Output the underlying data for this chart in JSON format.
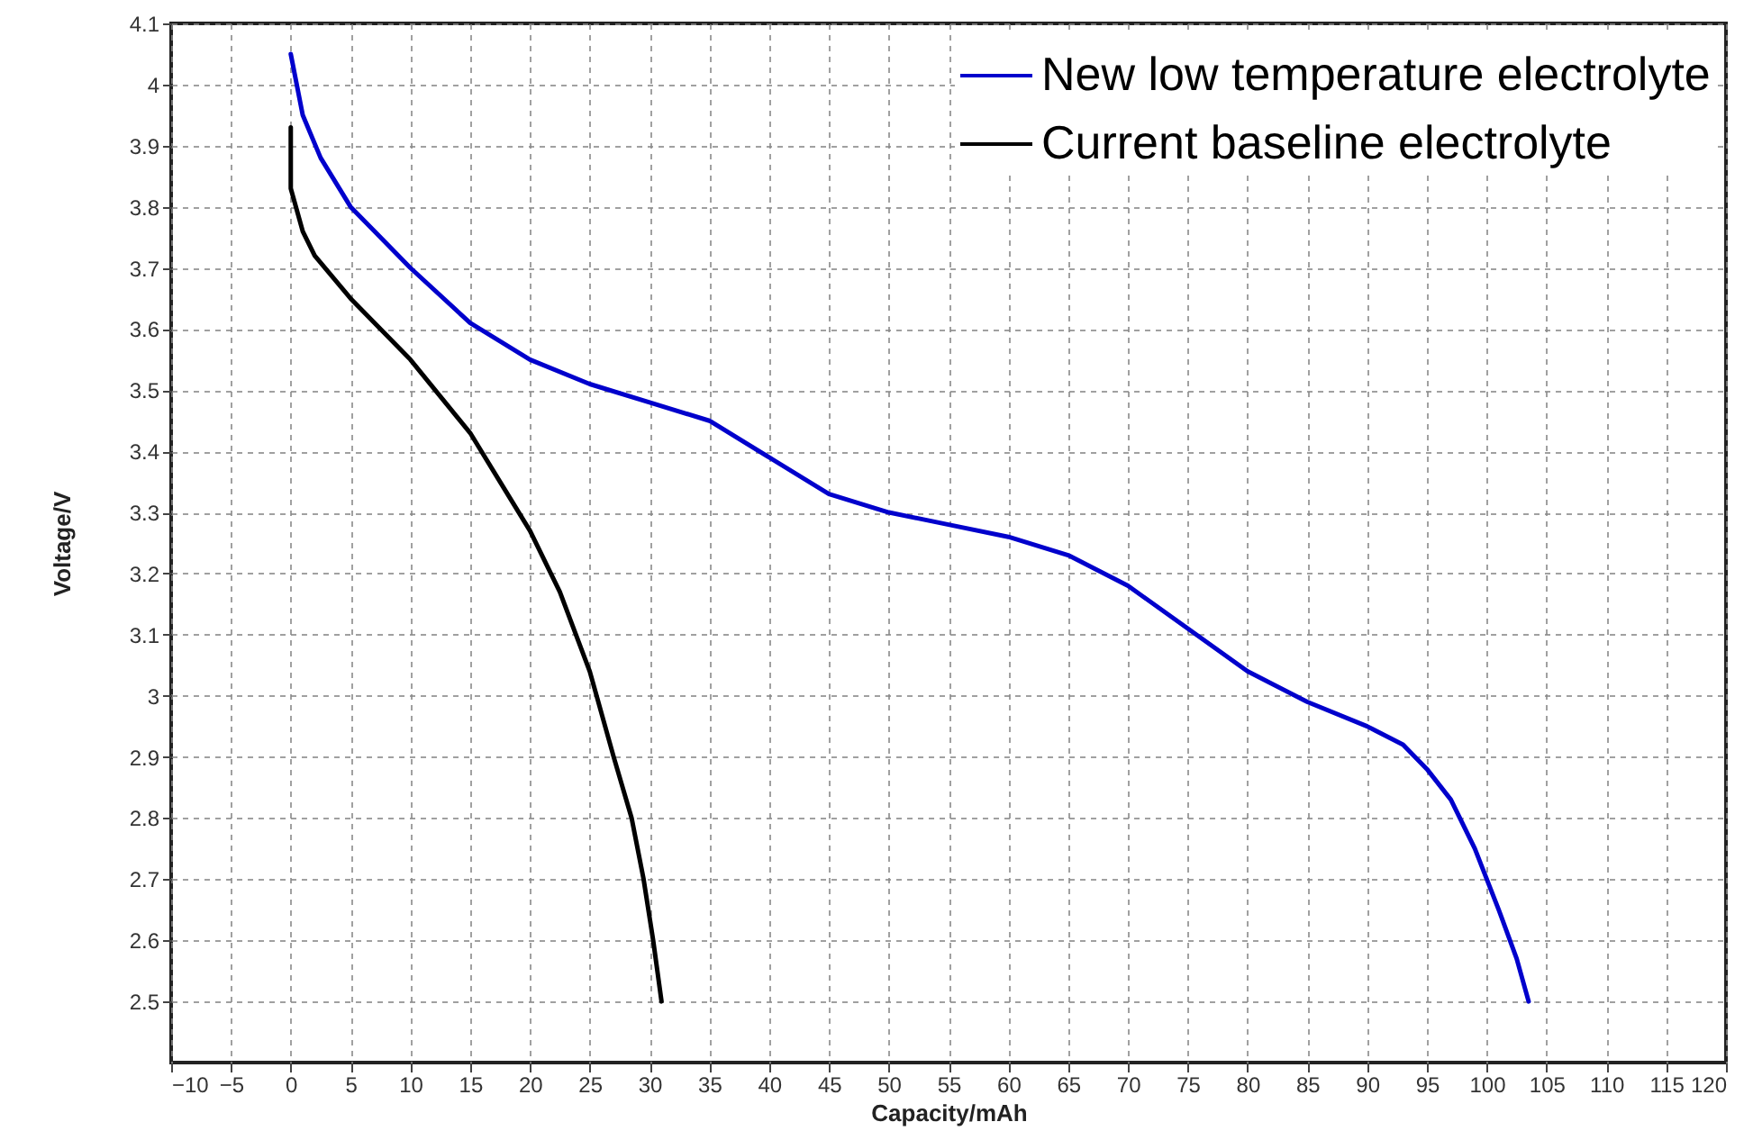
{
  "chart_data": {
    "type": "line",
    "xlabel": "Capacity/mAh",
    "ylabel": "Voltage/V",
    "xlim": [
      -10,
      120
    ],
    "xticks": [
      -10,
      -5,
      0,
      5,
      10,
      15,
      20,
      25,
      30,
      35,
      40,
      45,
      50,
      55,
      60,
      65,
      70,
      75,
      80,
      85,
      90,
      95,
      100,
      105,
      110,
      115,
      120
    ],
    "ylim": [
      2.4,
      4.1
    ],
    "yticks": [
      2.5,
      2.6,
      2.7,
      2.8,
      2.9,
      3,
      3.1,
      3.2,
      3.3,
      3.4,
      3.5,
      3.6,
      3.7,
      3.8,
      3.9,
      4,
      4.1
    ],
    "grid": true,
    "legend": "top right",
    "marker": "none",
    "line_style": "solid",
    "series": [
      {
        "name": "New low temperature electrolyte",
        "color": "#0000cc",
        "x": [
          0,
          1,
          2.5,
          5,
          10,
          15,
          20,
          25,
          30,
          35,
          40,
          45,
          50,
          55,
          60,
          65,
          70,
          75,
          80,
          85,
          90,
          93,
          95,
          97,
          99,
          101,
          102.5,
          103.5
        ],
        "values": [
          4.05,
          3.95,
          3.88,
          3.8,
          3.7,
          3.61,
          3.55,
          3.51,
          3.48,
          3.45,
          3.39,
          3.33,
          3.3,
          3.28,
          3.26,
          3.23,
          3.18,
          3.11,
          3.04,
          2.99,
          2.95,
          2.92,
          2.88,
          2.83,
          2.75,
          2.65,
          2.57,
          2.5
        ]
      },
      {
        "name": "Current baseline electrolyte",
        "color": "#000000",
        "x": [
          0,
          0,
          1,
          2,
          5,
          10,
          15,
          17.5,
          20,
          22.5,
          25,
          27,
          28.5,
          29.5,
          30.3,
          31
        ],
        "values": [
          3.93,
          3.83,
          3.76,
          3.72,
          3.65,
          3.55,
          3.43,
          3.35,
          3.27,
          3.17,
          3.04,
          2.9,
          2.8,
          2.7,
          2.6,
          2.5
        ]
      }
    ]
  }
}
